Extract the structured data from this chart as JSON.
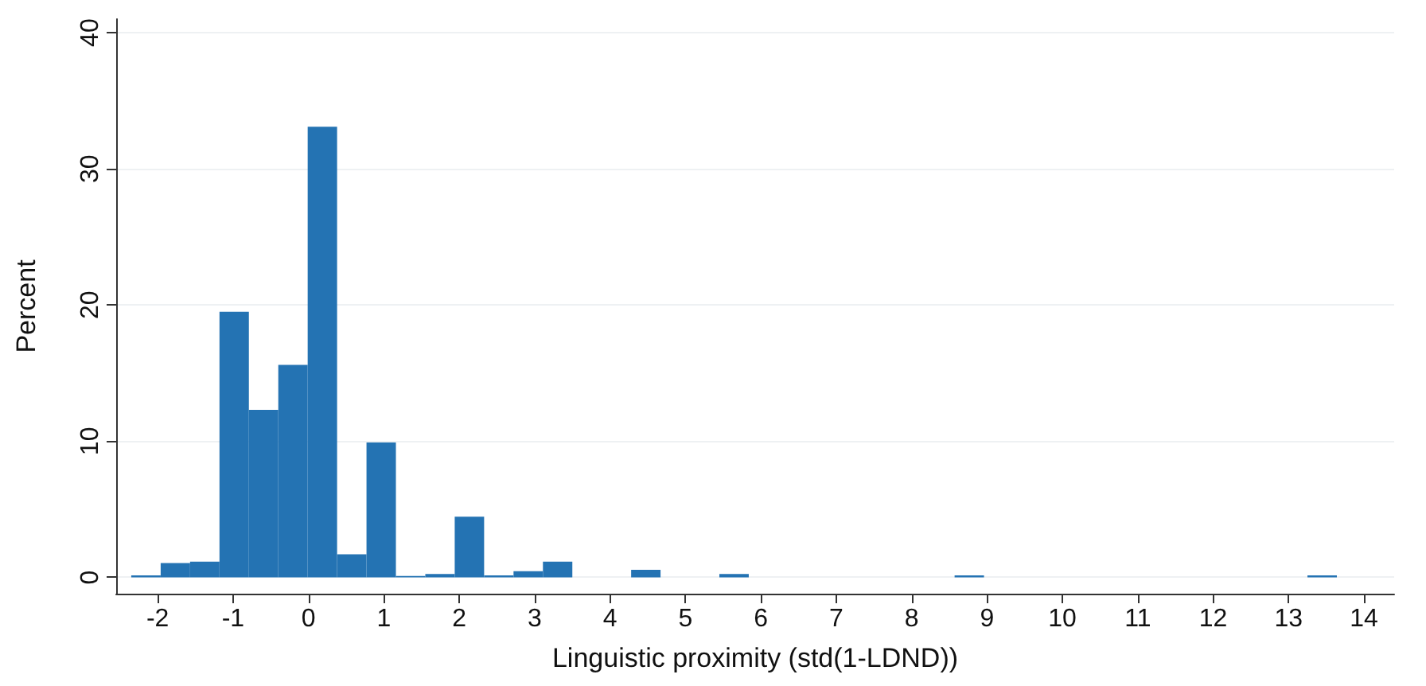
{
  "chart_data": {
    "type": "histogram",
    "xlabel": "Linguistic proximity (std(1-LDND))",
    "ylabel": "Percent",
    "color": "#2473b3",
    "bins": [
      -2.35,
      -1.96,
      -1.57,
      -1.18,
      -0.79,
      -0.4,
      -0.01,
      0.38,
      0.77,
      1.16,
      1.55,
      1.94,
      2.33,
      2.72,
      3.11,
      3.5,
      3.89,
      4.28,
      4.67,
      5.06,
      5.45,
      5.84,
      6.23,
      6.62,
      7.01,
      7.4,
      7.79,
      8.18,
      8.57,
      8.96,
      9.35,
      9.74,
      10.13,
      10.52,
      10.91,
      11.3,
      11.69,
      12.08,
      12.47,
      12.86,
      13.25,
      13.64
    ],
    "values": [
      0.15,
      1.05,
      1.15,
      19.5,
      12.3,
      15.6,
      33.1,
      1.7,
      9.9,
      0.1,
      0.25,
      4.45,
      0.15,
      0.45,
      1.15,
      0,
      0,
      0.55,
      0,
      0,
      0.25,
      0,
      0,
      0,
      0,
      0,
      0,
      0,
      0.15,
      0,
      0,
      0,
      0,
      0,
      0,
      0,
      0,
      0,
      0,
      0,
      0.15
    ],
    "xlim": [
      -2.55,
      14.4
    ],
    "xticks": [
      -2,
      -1,
      0,
      1,
      2,
      3,
      4,
      5,
      6,
      7,
      8,
      9,
      10,
      11,
      12,
      13,
      14
    ],
    "ylim": [
      -1.2,
      41
    ],
    "yticks": [
      0,
      10,
      20,
      30,
      40
    ],
    "grid": "y"
  }
}
